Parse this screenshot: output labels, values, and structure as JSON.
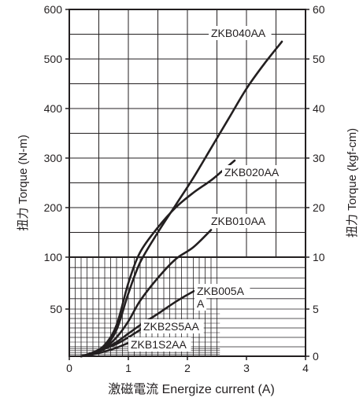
{
  "chart_data": {
    "type": "line",
    "title": "",
    "xlabel": "激磁電流 Energize current (A)",
    "ylabel": "扭力 Torque (N-m)",
    "y2label": "扭力 Torque (kgf-cm)",
    "xlim": [
      0,
      4
    ],
    "xticks": [
      0,
      1,
      2,
      3,
      4
    ],
    "y_upper_ticks": [
      100,
      200,
      300,
      400,
      500,
      600
    ],
    "y_lower_ticks": [
      50,
      100
    ],
    "y2_upper_ticks": [
      10,
      20,
      30,
      40,
      50,
      60
    ],
    "y2_lower_ticks": [
      0,
      5,
      10
    ],
    "grid": true,
    "axis_note": "Left axis is linear from 100 to 600 N-m; below 100 N-m it is expanded (log-like) with a dense grid; right axis is kgf-cm (1/10 scale).",
    "series": [
      {
        "name": "ZKB040AA",
        "x": [
          0.2,
          0.4,
          0.6,
          0.8,
          1.0,
          1.2,
          1.5,
          1.8,
          2.1,
          2.4,
          2.7,
          3.0,
          3.3,
          3.6
        ],
        "y": [
          0,
          3,
          10,
          28,
          65,
          95,
          150,
          205,
          260,
          320,
          380,
          440,
          490,
          535
        ]
      },
      {
        "name": "ZKB020AA",
        "x": [
          0.2,
          0.4,
          0.6,
          0.8,
          1.0,
          1.2,
          1.5,
          1.8,
          2.1,
          2.4,
          2.6,
          2.8
        ],
        "y": [
          0,
          4,
          12,
          33,
          75,
          110,
          160,
          200,
          230,
          255,
          275,
          295
        ]
      },
      {
        "name": "ZKB010AA",
        "x": [
          0.2,
          0.4,
          0.6,
          0.8,
          1.0,
          1.2,
          1.5,
          1.8,
          2.1,
          2.4
        ],
        "y": [
          0,
          3,
          9,
          20,
          37,
          58,
          80,
          98,
          120,
          155
        ]
      },
      {
        "name": "ZKB005AA",
        "x": [
          0.2,
          0.4,
          0.6,
          0.8,
          1.0,
          1.2,
          1.5,
          1.8,
          2.1,
          2.25
        ],
        "y": [
          0,
          3,
          8,
          15,
          24,
          33,
          45,
          57,
          67,
          71
        ]
      },
      {
        "name": "ZKB2S5AA",
        "x": [
          0.2,
          0.4,
          0.6,
          0.8,
          1.0,
          1.2,
          1.3
        ],
        "y": [
          0,
          3,
          8,
          13,
          20,
          28,
          32
        ]
      },
      {
        "name": "ZKB1S2AA",
        "x": [
          0.2,
          0.4,
          0.6,
          0.8,
          1.0,
          1.2
        ],
        "y": [
          0,
          2,
          5,
          9,
          14,
          18
        ]
      }
    ],
    "annotations": [
      {
        "text": "ZKB040AA",
        "series": "ZKB040AA"
      },
      {
        "text": "ZKB020AA",
        "series": "ZKB020AA"
      },
      {
        "text": "ZKB010AA",
        "series": "ZKB010AA"
      },
      {
        "text_line1": "ZKB005A",
        "text_line2": "A",
        "series": "ZKB005AA"
      },
      {
        "text": "ZKB2S5AA",
        "series": "ZKB2S5AA"
      },
      {
        "text": "ZKB1S2AA",
        "series": "ZKB1S2AA"
      }
    ]
  }
}
